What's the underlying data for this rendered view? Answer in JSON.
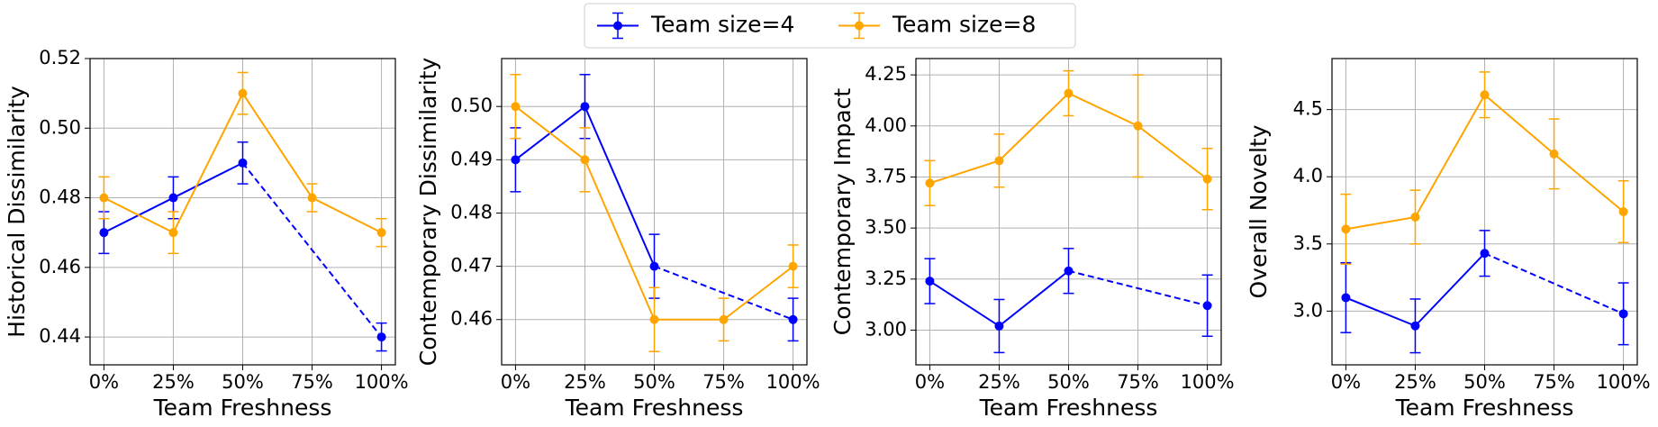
{
  "chart_data": [
    {
      "type": "line",
      "ylabel": "Historical Dissimilarity",
      "xlabel": "Team Freshness",
      "categories": [
        "0%",
        "25%",
        "50%",
        "75%",
        "100%"
      ],
      "ylim": [
        0.432,
        0.52
      ],
      "yticks": [
        0.44,
        0.46,
        0.48,
        {
          "value": 0.5,
          "label": "0.50"
        },
        0.52
      ],
      "grid": true,
      "legend": "upper center",
      "series": [
        {
          "name": "Team size=4",
          "color": "#0000ff",
          "values": [
            0.47,
            0.48,
            0.49,
            null,
            0.44
          ],
          "errors": [
            0.006,
            0.006,
            0.006,
            null,
            0.004
          ]
        },
        {
          "name": "Team size=8",
          "color": "#ffa500",
          "values": [
            0.48,
            0.47,
            0.51,
            0.48,
            0.47
          ],
          "errors": [
            0.006,
            0.006,
            0.006,
            0.004,
            0.004
          ]
        }
      ]
    },
    {
      "type": "line",
      "ylabel": "Contemporary Dissimilarity",
      "xlabel": "Team Freshness",
      "categories": [
        "0%",
        "25%",
        "50%",
        "75%",
        "100%"
      ],
      "ylim": [
        0.4515,
        0.509
      ],
      "yticks": [
        0.46,
        0.47,
        0.48,
        0.49,
        {
          "value": 0.5,
          "label": "0.50"
        }
      ],
      "grid": true,
      "series": [
        {
          "name": "Team size=4",
          "color": "#0000ff",
          "values": [
            0.49,
            0.5,
            0.47,
            null,
            0.46
          ],
          "errors": [
            0.006,
            0.006,
            0.006,
            null,
            0.004
          ]
        },
        {
          "name": "Team size=8",
          "color": "#ffa500",
          "values": [
            0.5,
            0.49,
            0.46,
            0.46,
            0.47
          ],
          "errors": [
            0.006,
            0.006,
            0.006,
            0.004,
            0.004
          ]
        }
      ]
    },
    {
      "type": "line",
      "ylabel": "Contemporary Impact",
      "xlabel": "Team Freshness",
      "categories": [
        "0%",
        "25%",
        "50%",
        "75%",
        "100%"
      ],
      "ylim": [
        2.83,
        4.33
      ],
      "yticks": [
        {
          "value": 3,
          "label": "3.00"
        },
        3.25,
        {
          "value": 3.5,
          "label": "3.50"
        },
        3.75,
        {
          "value": 4,
          "label": "4.00"
        },
        4.25
      ],
      "grid": true,
      "series": [
        {
          "name": "Team size=4",
          "color": "#0000ff",
          "values": [
            3.24,
            3.02,
            3.29,
            null,
            3.12
          ],
          "errors": [
            0.11,
            0.13,
            0.11,
            null,
            0.15
          ]
        },
        {
          "name": "Team size=8",
          "color": "#ffa500",
          "values": [
            3.72,
            3.83,
            4.16,
            4.0,
            3.74
          ],
          "errors": [
            0.11,
            0.13,
            0.11,
            0.25,
            0.15
          ]
        }
      ]
    },
    {
      "type": "line",
      "ylabel": "Overall Novelty",
      "xlabel": "Team Freshness",
      "categories": [
        "0%",
        "25%",
        "50%",
        "75%",
        "100%"
      ],
      "ylim": [
        2.6,
        4.88
      ],
      "yticks": [
        {
          "value": 3,
          "label": "3.0"
        },
        3.5,
        {
          "value": 4,
          "label": "4.0"
        },
        4.5
      ],
      "grid": true,
      "series": [
        {
          "name": "Team size=4",
          "color": "#0000ff",
          "values": [
            3.1,
            2.89,
            3.43,
            null,
            2.98
          ],
          "errors": [
            0.26,
            0.2,
            0.17,
            null,
            0.23
          ]
        },
        {
          "name": "Team size=8",
          "color": "#ffa500",
          "values": [
            3.61,
            3.7,
            4.61,
            4.17,
            3.74
          ],
          "errors": [
            0.26,
            0.2,
            0.17,
            0.26,
            0.23
          ]
        }
      ]
    }
  ]
}
